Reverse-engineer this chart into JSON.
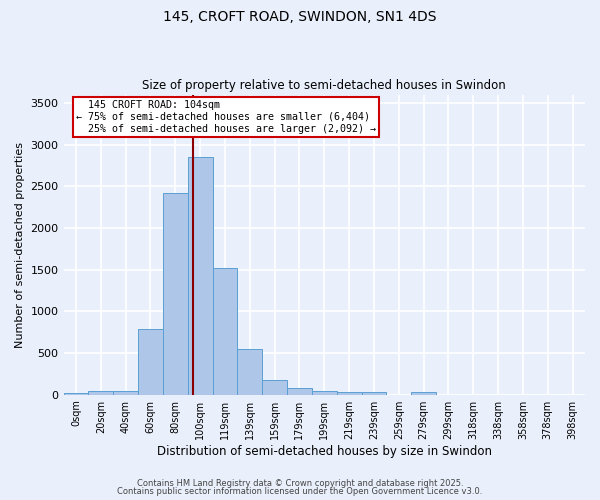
{
  "title_line1": "145, CROFT ROAD, SWINDON, SN1 4DS",
  "title_line2": "Size of property relative to semi-detached houses in Swindon",
  "xlabel": "Distribution of semi-detached houses by size in Swindon",
  "ylabel": "Number of semi-detached properties",
  "bin_labels": [
    "0sqm",
    "20sqm",
    "40sqm",
    "60sqm",
    "80sqm",
    "100sqm",
    "119sqm",
    "139sqm",
    "159sqm",
    "179sqm",
    "199sqm",
    "219sqm",
    "239sqm",
    "259sqm",
    "279sqm",
    "299sqm",
    "318sqm",
    "338sqm",
    "358sqm",
    "378sqm",
    "398sqm"
  ],
  "bar_values": [
    20,
    50,
    50,
    790,
    2420,
    2850,
    1520,
    545,
    175,
    85,
    50,
    35,
    30,
    0,
    35,
    0,
    0,
    0,
    0,
    0,
    0
  ],
  "bar_color": "#aec6e8",
  "bar_edge_color": "#5a9fd4",
  "property_label": "145 CROFT ROAD: 104sqm",
  "pct_smaller": 75,
  "n_smaller": 6404,
  "pct_larger": 25,
  "n_larger": 2092,
  "vline_color": "#8b0000",
  "annotation_box_color": "#ffffff",
  "annotation_box_edge": "#cc0000",
  "ylim": [
    0,
    3600
  ],
  "yticks": [
    0,
    500,
    1000,
    1500,
    2000,
    2500,
    3000,
    3500
  ],
  "background_color": "#eaf0fb",
  "grid_color": "#ffffff",
  "footer_line1": "Contains HM Land Registry data © Crown copyright and database right 2025.",
  "footer_line2": "Contains public sector information licensed under the Open Government Licence v3.0."
}
